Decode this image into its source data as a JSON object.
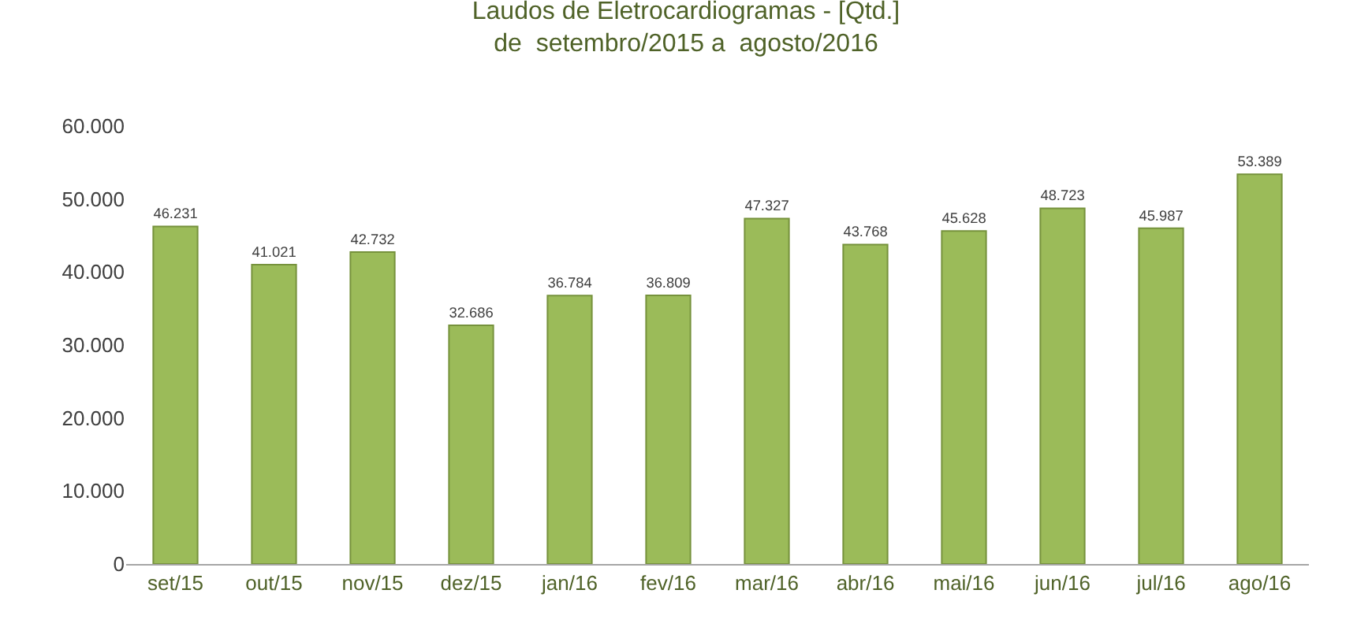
{
  "chart_data": {
    "type": "bar",
    "title": "Laudos de Eletrocardiogramas - [Qtd.]",
    "subtitle": "de  setembro/2015 a  agosto/2016",
    "categories": [
      "set/15",
      "out/15",
      "nov/15",
      "dez/15",
      "jan/16",
      "fev/16",
      "mar/16",
      "abr/16",
      "mai/16",
      "jun/16",
      "jul/16",
      "ago/16"
    ],
    "values": [
      46231,
      41021,
      42732,
      32686,
      36784,
      36809,
      47327,
      43768,
      45628,
      48723,
      45987,
      53389
    ],
    "value_labels": [
      "46.231",
      "41.021",
      "42.732",
      "32.686",
      "36.784",
      "36.809",
      "47.327",
      "43.768",
      "45.628",
      "48.723",
      "45.987",
      "53.389"
    ],
    "color": "#9bbb59",
    "ylim": [
      0,
      60000
    ],
    "yticks": [
      {
        "value": 0,
        "label": "0"
      },
      {
        "value": 10000,
        "label": "10.000"
      },
      {
        "value": 20000,
        "label": "20.000"
      },
      {
        "value": 30000,
        "label": "30.000"
      },
      {
        "value": 40000,
        "label": "40.000"
      },
      {
        "value": 50000,
        "label": "50.000"
      },
      {
        "value": 60000,
        "label": "60.000"
      }
    ],
    "grid": false,
    "legend": false
  }
}
